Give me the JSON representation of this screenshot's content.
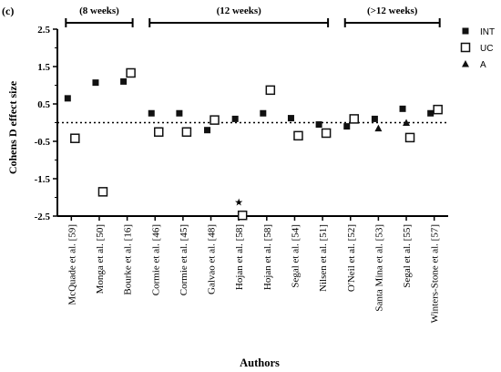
{
  "panel_label": "(c)",
  "chart_data": {
    "type": "scatter",
    "title": "",
    "xlabel": "Authors",
    "ylabel": "Cohens D effect size",
    "ylim": [
      -2.5,
      2.5
    ],
    "yticks": [
      "2.5",
      "1.5",
      "0.5",
      "-0.5",
      "-1.5",
      "-2.5"
    ],
    "ytick_values": [
      2.5,
      1.5,
      0.5,
      -0.5,
      -1.5,
      -2.5
    ],
    "reference_line": 0,
    "categories": [
      "McQuade et al. [59]",
      "Monga et al. [50]",
      "Bourke et al. [16]",
      "Cormie et al. [46]",
      "Cormie et al. [45]",
      "Galvao et al. [48]",
      "Hojan et al. [58]",
      "Hojan et al. [58]",
      "Segal et al. [54]",
      "Nilsen et al. [51]",
      "O'Neil et al. [52]",
      "Santa Mina et al. [53]",
      "Segal et al. [55]",
      "Winters-Stone et al. [57]"
    ],
    "groups": [
      {
        "label": "(8 weeks)",
        "from": 0,
        "to": 2
      },
      {
        "label": "(12 weeks)",
        "from": 3,
        "to": 9
      },
      {
        "label": "(>12 weeks)",
        "from": 10,
        "to": 13
      }
    ],
    "legend_position": "top-right",
    "series": [
      {
        "name": "INT",
        "marker": "filled-square",
        "color": "#111111",
        "values": [
          0.65,
          1.07,
          1.1,
          0.25,
          0.25,
          -0.2,
          0.1,
          0.25,
          0.12,
          -0.05,
          -0.1,
          0.1,
          0.37,
          0.25
        ]
      },
      {
        "name": "UC",
        "marker": "open-square",
        "color": "#111111",
        "values": [
          -0.42,
          -1.85,
          1.33,
          -0.25,
          -0.25,
          0.07,
          -2.48,
          0.87,
          -0.35,
          -0.28,
          0.1,
          null,
          -0.4,
          0.35
        ]
      },
      {
        "name": "A",
        "marker": "filled-triangle",
        "color": "#111111",
        "values": [
          null,
          null,
          null,
          null,
          null,
          null,
          null,
          null,
          null,
          null,
          null,
          -0.15,
          0.0,
          null
        ]
      }
    ],
    "annotations": [
      {
        "text": "★",
        "category_index": 6,
        "y": -2.12
      }
    ]
  }
}
